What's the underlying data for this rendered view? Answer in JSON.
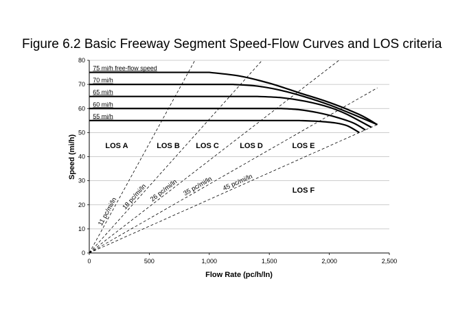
{
  "figure_title": "Figure 6.2 Basic Freeway Segment Speed-Flow Curves and LOS criteria",
  "chart_data": {
    "type": "line",
    "title": "Figure 6.2 Basic Freeway Segment Speed-Flow Curves and LOS criteria",
    "xlabel": "Flow Rate (pc/h/ln)",
    "ylabel": "Speed (mi/h)",
    "xlim": [
      0,
      2500
    ],
    "ylim": [
      0,
      80
    ],
    "x_ticks": [
      "0",
      "500",
      "1,000",
      "1,500",
      "2,000",
      "2,500"
    ],
    "x_tick_values": [
      0,
      500,
      1000,
      1500,
      2000,
      2500
    ],
    "y_ticks": [
      "0",
      "10",
      "20",
      "30",
      "40",
      "50",
      "60",
      "70",
      "80"
    ],
    "y_tick_values": [
      0,
      10,
      20,
      30,
      40,
      50,
      60,
      70,
      80
    ],
    "grid": "horizontal",
    "series": [
      {
        "name": "75 mi/h free-flow speed",
        "values": [
          [
            0,
            75
          ],
          [
            1000,
            75
          ],
          [
            1250,
            73.5
          ],
          [
            1500,
            70.5
          ],
          [
            1750,
            66.5
          ],
          [
            2000,
            62.5
          ],
          [
            2250,
            57.5
          ],
          [
            2400,
            53.3
          ]
        ]
      },
      {
        "name": "70 mi/h",
        "values": [
          [
            0,
            70
          ],
          [
            1200,
            70
          ],
          [
            1400,
            69.3
          ],
          [
            1600,
            67.5
          ],
          [
            1800,
            64.8
          ],
          [
            2000,
            61.5
          ],
          [
            2200,
            57.5
          ],
          [
            2400,
            53.3
          ]
        ]
      },
      {
        "name": "65 mi/h",
        "values": [
          [
            0,
            65
          ],
          [
            1400,
            65
          ],
          [
            1600,
            64.5
          ],
          [
            1800,
            63
          ],
          [
            2000,
            60.5
          ],
          [
            2150,
            57.5
          ],
          [
            2350,
            52.2
          ]
        ]
      },
      {
        "name": "60 mi/h",
        "values": [
          [
            0,
            60
          ],
          [
            1600,
            60
          ],
          [
            1750,
            59.5
          ],
          [
            1900,
            58.3
          ],
          [
            2050,
            56.5
          ],
          [
            2200,
            54
          ],
          [
            2300,
            51.1
          ]
        ]
      },
      {
        "name": "55 mi/h",
        "values": [
          [
            0,
            55
          ],
          [
            1750,
            55
          ],
          [
            1900,
            54.7
          ],
          [
            2050,
            54
          ],
          [
            2150,
            52.8
          ],
          [
            2250,
            50.0
          ]
        ]
      }
    ],
    "density_lines": [
      {
        "label": "11 pc/mi/ln",
        "density": 11
      },
      {
        "label": "18 pc/mi/ln",
        "density": 18
      },
      {
        "label": "26 pc/mi/ln",
        "density": 26
      },
      {
        "label": "35 pc/mi/ln",
        "density": 35
      },
      {
        "label": "45 pc/mi/ln",
        "density": 45
      }
    ],
    "los_regions": [
      "LOS A",
      "LOS B",
      "LOS C",
      "LOS D",
      "LOS E",
      "LOS F"
    ],
    "colors": {
      "curves": "#000000",
      "density_lines": "#000000",
      "grid": "#bbbbbb"
    }
  }
}
